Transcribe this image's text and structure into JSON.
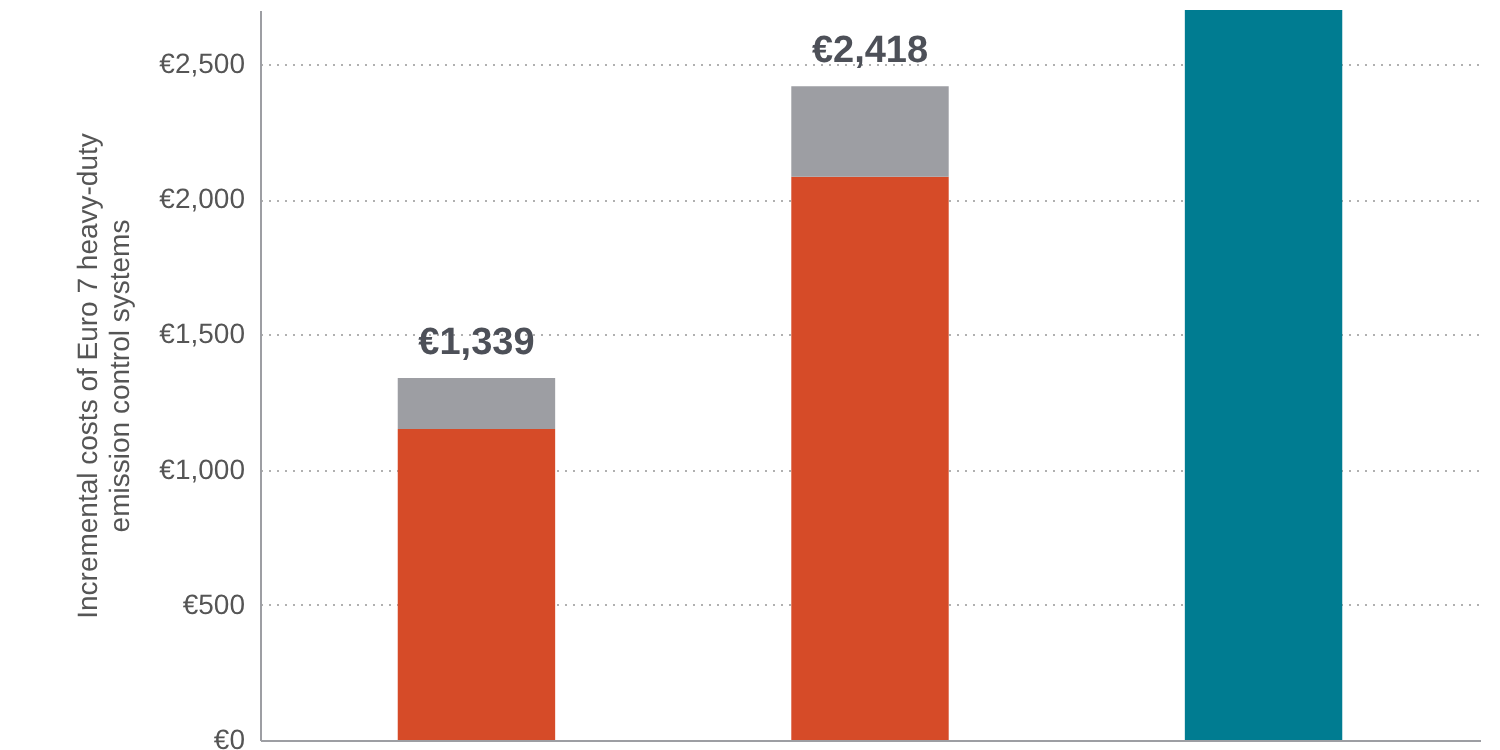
{
  "chart_data": {
    "type": "bar",
    "stacked": true,
    "ylabel": "Incremental costs of Euro 7 heavy-duty emission control systems",
    "categories": [
      null,
      null,
      null
    ],
    "series": [
      {
        "color": "#d64b28",
        "values": [
          1150,
          2083,
          null
        ]
      },
      {
        "color": "#9d9ea3",
        "values": [
          189,
          335,
          null
        ]
      },
      {
        "color": "#007c91",
        "values": [
          null,
          null,
          2700
        ]
      }
    ],
    "totals": [
      "€1,339",
      "€2,418",
      null
    ],
    "ylim": [
      0,
      2700
    ],
    "yticks": [
      {
        "value": 0,
        "label": "€0"
      },
      {
        "value": 500,
        "label": "€500"
      },
      {
        "value": 1000,
        "label": "€1,000"
      },
      {
        "value": 1500,
        "label": "€1,500"
      },
      {
        "value": 2000,
        "label": "€2,000"
      },
      {
        "value": 2500,
        "label": "€2,500"
      }
    ],
    "grid": "y",
    "tick_labels": "y"
  }
}
